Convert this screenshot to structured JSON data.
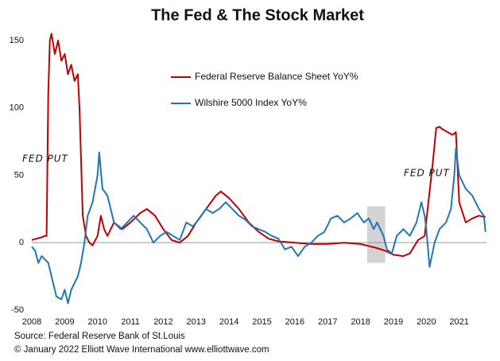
{
  "chart_data": {
    "type": "line",
    "title": "The Fed & The Stock Market",
    "xlim": [
      2008,
      2021.83
    ],
    "xticks": [
      2008,
      2009,
      2010,
      2011,
      2012,
      2013,
      2014,
      2015,
      2016,
      2017,
      2018,
      2019,
      2020,
      2021
    ],
    "ylim": [
      -53,
      160
    ],
    "yticks": [
      150,
      100,
      50,
      0,
      -50
    ],
    "reference_line": 0,
    "highlight": {
      "x": [
        2018.2,
        2018.75
      ],
      "y": [
        -15,
        27
      ],
      "color": "#d3d3d3"
    },
    "annotations": [
      "FED PUT",
      "FED PUT"
    ],
    "source": [
      "Source: Federal Reserve Bank of St.Louis",
      "© January 2022   Elliott Wave International   www.elliottwave.com"
    ],
    "series": [
      {
        "name": "Federal Reserve Balance Sheet YoY%",
        "color": "#c00000",
        "x": [
          2008.0,
          2008.3,
          2008.4,
          2008.45,
          2008.5,
          2008.55,
          2008.6,
          2008.7,
          2008.8,
          2008.9,
          2009.0,
          2009.1,
          2009.2,
          2009.3,
          2009.4,
          2009.45,
          2009.55,
          2009.65,
          2009.75,
          2009.85,
          2010.0,
          2010.1,
          2010.2,
          2010.3,
          2010.5,
          2010.75,
          2011.0,
          2011.3,
          2011.5,
          2011.75,
          2012.0,
          2012.25,
          2012.5,
          2012.75,
          2013.0,
          2013.3,
          2013.6,
          2013.75,
          2014.0,
          2014.3,
          2014.6,
          2014.9,
          2015.2,
          2015.5,
          2016.0,
          2016.5,
          2017.0,
          2017.5,
          2018.0,
          2018.5,
          2018.75,
          2019.0,
          2019.3,
          2019.5,
          2019.75,
          2019.95,
          2020.2,
          2020.3,
          2020.4,
          2020.5,
          2020.8,
          2020.9,
          2021.0,
          2021.2,
          2021.4,
          2021.6,
          2021.8
        ],
        "values": [
          2,
          4,
          5,
          5,
          110,
          150,
          155,
          140,
          150,
          135,
          140,
          125,
          132,
          120,
          125,
          100,
          20,
          5,
          0,
          -2,
          5,
          20,
          10,
          5,
          15,
          10,
          15,
          22,
          25,
          20,
          10,
          2,
          0,
          5,
          15,
          25,
          35,
          38,
          33,
          25,
          15,
          8,
          3,
          1,
          0,
          -1,
          -1,
          0,
          -1,
          -4,
          -6,
          -9,
          -10,
          -8,
          2,
          5,
          60,
          85,
          86,
          84,
          80,
          82,
          30,
          15,
          18,
          20,
          19
        ]
      },
      {
        "name": "Wilshire 5000 Index YoY%",
        "color": "#1f77b4",
        "x": [
          2008.0,
          2008.1,
          2008.2,
          2008.3,
          2008.5,
          2008.6,
          2008.75,
          2008.9,
          2009.0,
          2009.1,
          2009.2,
          2009.4,
          2009.5,
          2009.6,
          2009.7,
          2009.85,
          2010.0,
          2010.05,
          2010.15,
          2010.3,
          2010.5,
          2010.7,
          2010.9,
          2011.1,
          2011.3,
          2011.5,
          2011.7,
          2011.9,
          2012.1,
          2012.3,
          2012.5,
          2012.7,
          2012.9,
          2013.1,
          2013.3,
          2013.5,
          2013.7,
          2013.9,
          2014.1,
          2014.3,
          2014.5,
          2014.7,
          2014.9,
          2015.1,
          2015.3,
          2015.5,
          2015.7,
          2015.9,
          2016.1,
          2016.3,
          2016.5,
          2016.7,
          2016.9,
          2017.1,
          2017.3,
          2017.5,
          2017.7,
          2017.9,
          2018.1,
          2018.25,
          2018.4,
          2018.5,
          2018.7,
          2018.8,
          2018.95,
          2019.1,
          2019.3,
          2019.5,
          2019.7,
          2019.85,
          2019.95,
          2020.0,
          2020.1,
          2020.25,
          2020.4,
          2020.6,
          2020.75,
          2020.85,
          2020.9,
          2021.0,
          2021.2,
          2021.4,
          2021.6,
          2021.75,
          2021.8
        ],
        "values": [
          -3,
          -6,
          -15,
          -10,
          -15,
          -25,
          -40,
          -42,
          -35,
          -45,
          -35,
          -25,
          -15,
          0,
          20,
          30,
          50,
          67,
          40,
          35,
          15,
          10,
          15,
          20,
          15,
          10,
          0,
          5,
          8,
          5,
          2,
          15,
          12,
          18,
          25,
          22,
          25,
          30,
          25,
          20,
          17,
          12,
          10,
          8,
          5,
          3,
          -5,
          -3,
          -10,
          -3,
          0,
          5,
          8,
          18,
          20,
          15,
          18,
          22,
          15,
          18,
          10,
          15,
          5,
          -5,
          -8,
          5,
          10,
          5,
          15,
          30,
          20,
          10,
          -18,
          0,
          10,
          15,
          25,
          50,
          70,
          50,
          40,
          35,
          25,
          20,
          8
        ]
      }
    ]
  }
}
